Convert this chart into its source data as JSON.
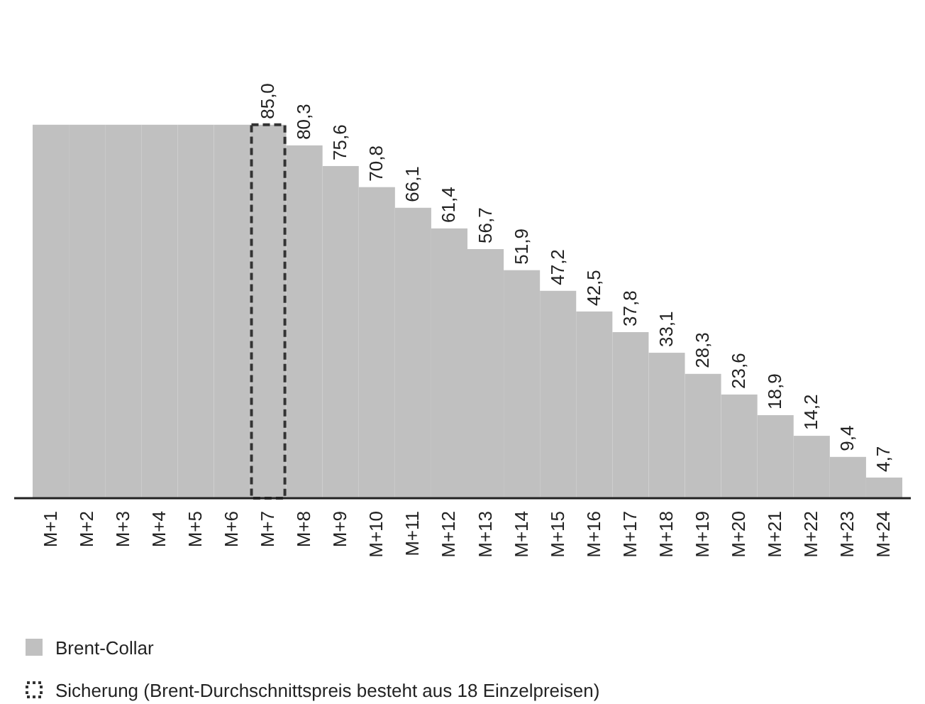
{
  "chart_data": {
    "type": "bar",
    "categories": [
      "M+1",
      "M+2",
      "M+3",
      "M+4",
      "M+5",
      "M+6",
      "M+7",
      "M+8",
      "M+9",
      "M+10",
      "M+11",
      "M+12",
      "M+13",
      "M+14",
      "M+15",
      "M+16",
      "M+17",
      "M+18",
      "M+19",
      "M+20",
      "M+21",
      "M+22",
      "M+23",
      "M+24"
    ],
    "series": [
      {
        "name": "Brent-Collar",
        "color": "#c0c0c0",
        "values": [
          85.0,
          85.0,
          85.0,
          85.0,
          85.0,
          85.0,
          85.0,
          80.3,
          75.6,
          70.8,
          66.1,
          61.4,
          56.7,
          51.9,
          47.2,
          42.5,
          37.8,
          33.1,
          28.3,
          23.6,
          18.9,
          14.2,
          9.4,
          4.7
        ],
        "value_labels": [
          null,
          null,
          null,
          null,
          null,
          null,
          "85,0",
          "80,3",
          "75,6",
          "70,8",
          "66,1",
          "61,4",
          "56,7",
          "51,9",
          "47,2",
          "42,5",
          "37,8",
          "33,1",
          "28,3",
          "23,6",
          "18,9",
          "14,2",
          "9,4",
          "4,7"
        ]
      }
    ],
    "annotations": [
      "Sicherung (Brent-Durchschnittspreis besteht aus 18 Einzelpreisen)"
    ],
    "legend": "bottom left"
  }
}
